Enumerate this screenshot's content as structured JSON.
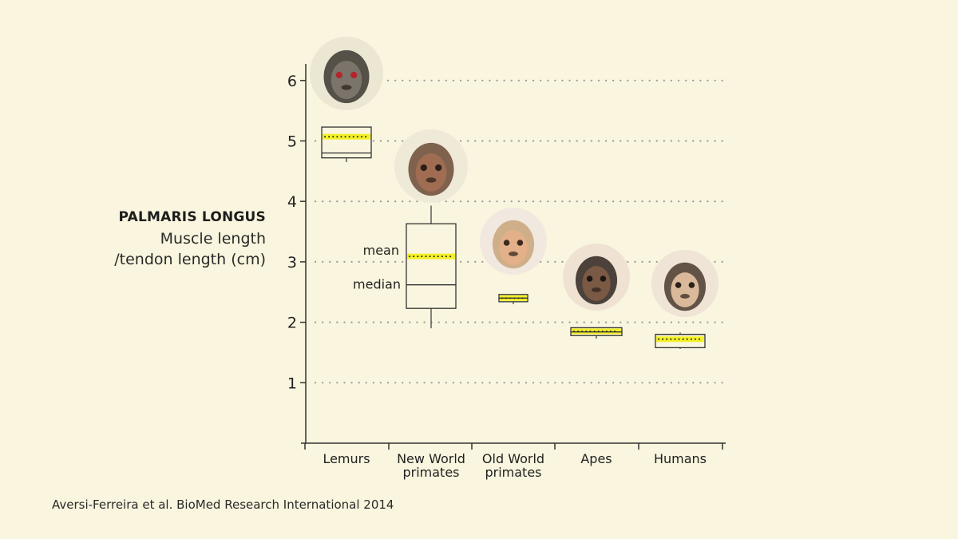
{
  "chart_data": {
    "type": "box",
    "title": "PALMARIS LONGUS",
    "ylabel_lines": [
      "Muscle length",
      "/tendon length (cm)"
    ],
    "ylim": [
      0,
      6.6
    ],
    "yticks": [
      1,
      2,
      3,
      4,
      5,
      6
    ],
    "grid": "dotted horizontal",
    "categories": [
      {
        "label_lines": [
          "Lemurs"
        ],
        "icon": "lemur-portrait-icon",
        "whisker_low": 4.65,
        "q1": 4.72,
        "median": 4.8,
        "mean": 5.07,
        "q3": 5.23,
        "whisker_high": 5.23
      },
      {
        "label_lines": [
          "New World",
          "primates"
        ],
        "icon": "capuchin-portrait-icon",
        "whisker_low": 1.9,
        "q1": 2.23,
        "median": 2.62,
        "mean": 3.09,
        "q3": 3.63,
        "whisker_high": 3.93
      },
      {
        "label_lines": [
          "Old World",
          "primates"
        ],
        "icon": "macaque-portrait-icon",
        "whisker_low": 2.3,
        "q1": 2.34,
        "median": 2.4,
        "mean": 2.4,
        "q3": 2.46,
        "whisker_high": 2.46
      },
      {
        "label_lines": [
          "Apes"
        ],
        "icon": "chimpanzee-portrait-icon",
        "whisker_low": 1.73,
        "q1": 1.78,
        "median": 1.84,
        "mean": 1.85,
        "q3": 1.91,
        "whisker_high": 1.91
      },
      {
        "label_lines": [
          "Humans"
        ],
        "icon": "human-portrait-icon",
        "whisker_low": 1.56,
        "q1": 1.58,
        "median": 1.8,
        "mean": 1.72,
        "q3": 1.8,
        "whisker_high": 1.83
      }
    ],
    "annotations": {
      "mean": "mean",
      "median": "median"
    },
    "colors": {
      "background": "#f9f5de",
      "mean_highlight": "#f2ef1c",
      "axis": "#333333",
      "grid": "#999999"
    }
  },
  "source": "Aversi-Ferreira et al. BioMed Research International 2014"
}
